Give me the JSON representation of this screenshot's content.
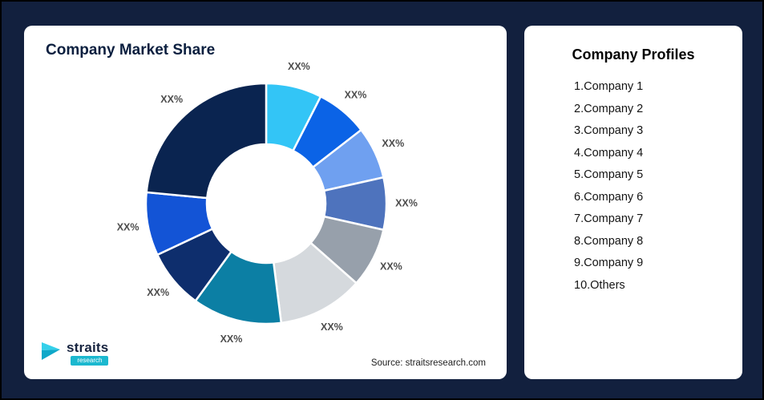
{
  "page": {
    "background_color": "#12203e"
  },
  "left_card": {
    "title": "Company Market Share",
    "source": "Source: straitsresearch.com",
    "logo": {
      "name": "straits",
      "sub": "research"
    }
  },
  "right_card": {
    "title": "Company Profiles",
    "items": [
      "1.Company 1",
      "2.Company 2",
      "3.Company 3",
      "4.Company 4",
      "5.Company 5",
      "6.Company 6",
      "7.Company 7",
      "8.Company 8",
      "9.Company 9",
      "10.Others"
    ]
  },
  "chart_data": {
    "type": "pie",
    "subtype": "donut",
    "title": "Company Market Share",
    "legend": "none",
    "inner_radius_ratio": 0.49,
    "series": [
      {
        "name": "Company 1",
        "label": "XX%",
        "value": 7.5,
        "color": "#33c5f6"
      },
      {
        "name": "Company 2",
        "label": "XX%",
        "value": 7.0,
        "color": "#0b63e6"
      },
      {
        "name": "Company 3",
        "label": "XX%",
        "value": 7.0,
        "color": "#6fa0f0"
      },
      {
        "name": "Company 4",
        "label": "XX%",
        "value": 7.0,
        "color": "#4e73bd"
      },
      {
        "name": "Company 5",
        "label": "XX%",
        "value": 8.0,
        "color": "#97a0ab"
      },
      {
        "name": "Company 6",
        "label": "XX%",
        "value": 11.5,
        "color": "#d5d9dd"
      },
      {
        "name": "Company 7",
        "label": "XX%",
        "value": 12.0,
        "color": "#0c7fa4"
      },
      {
        "name": "Company 8",
        "label": "XX%",
        "value": 8.0,
        "color": "#0e2e6d"
      },
      {
        "name": "Company 9",
        "label": "XX%",
        "value": 8.5,
        "color": "#1354d6"
      },
      {
        "name": "Others",
        "label": "XX%",
        "value": 23.5,
        "color": "#0a2450"
      }
    ]
  }
}
